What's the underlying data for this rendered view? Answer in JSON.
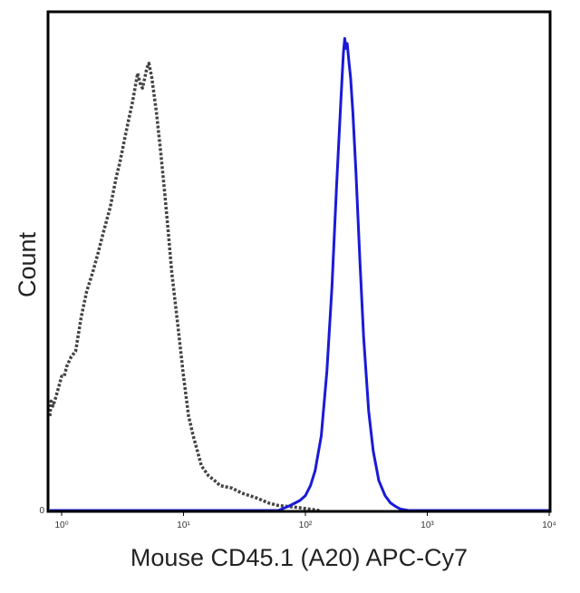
{
  "chart_data": {
    "type": "line",
    "title": "",
    "xlabel": "Mouse CD45.1 (A20) APC-Cy7",
    "ylabel": "Count",
    "xscale": "log",
    "xlim": [
      0.8,
      10000
    ],
    "ylim": [
      0,
      100
    ],
    "grid": false,
    "legend": "none",
    "y_ticks": [
      {
        "value": 0,
        "label": "0"
      }
    ],
    "x_ticks": [
      {
        "value": 1,
        "label": "10⁰"
      },
      {
        "value": 10,
        "label": "10¹"
      },
      {
        "value": 100,
        "label": "10²"
      },
      {
        "value": 1000,
        "label": "10³"
      },
      {
        "value": 10000,
        "label": "10⁴"
      }
    ],
    "series": [
      {
        "style": "dotted",
        "color": "#444444",
        "x": [
          0.8,
          0.82,
          0.85,
          0.9,
          0.95,
          1.0,
          1.05,
          1.1,
          1.2,
          1.3,
          1.45,
          1.6,
          1.8,
          2.0,
          2.2,
          2.5,
          2.8,
          3.0,
          3.3,
          3.5,
          3.8,
          4.0,
          4.2,
          4.4,
          4.6,
          4.8,
          5.0,
          5.2,
          5.5,
          6.0,
          6.5,
          7.0,
          7.5,
          8.0,
          9.0,
          10.0,
          11.0,
          12.0,
          13.0,
          14.0,
          16.0,
          18.0,
          20.0,
          25.0,
          30.0,
          40.0,
          50.0,
          60.0,
          80.0,
          100.0,
          130.0
        ],
        "y": [
          19,
          22,
          21,
          23,
          25,
          27,
          27,
          29,
          31,
          32,
          39,
          44,
          48,
          52,
          56,
          61,
          67,
          70,
          75,
          78,
          82,
          85,
          88,
          86,
          85,
          87,
          89,
          90,
          87,
          80,
          72,
          64,
          56,
          48,
          37,
          27,
          19,
          15,
          12,
          9,
          7,
          6,
          5,
          4.5,
          3.5,
          2.5,
          1.5,
          1.0,
          0.7,
          0.4,
          0
        ]
      },
      {
        "style": "solid",
        "color": "#1a1ad8",
        "x": [
          0.8,
          60,
          75,
          90,
          100,
          110,
          120,
          135,
          150,
          165,
          180,
          195,
          205,
          210,
          215,
          220,
          228,
          235,
          245,
          260,
          280,
          300,
          330,
          360,
          400,
          450,
          500,
          550,
          600,
          700,
          10000
        ],
        "y": [
          0,
          0,
          1,
          2,
          3,
          5,
          8,
          15,
          28,
          45,
          65,
          82,
          92,
          95,
          93,
          94,
          90,
          87,
          80,
          68,
          50,
          35,
          20,
          12,
          6,
          3,
          1.5,
          0.8,
          0.3,
          0,
          0
        ]
      }
    ]
  }
}
